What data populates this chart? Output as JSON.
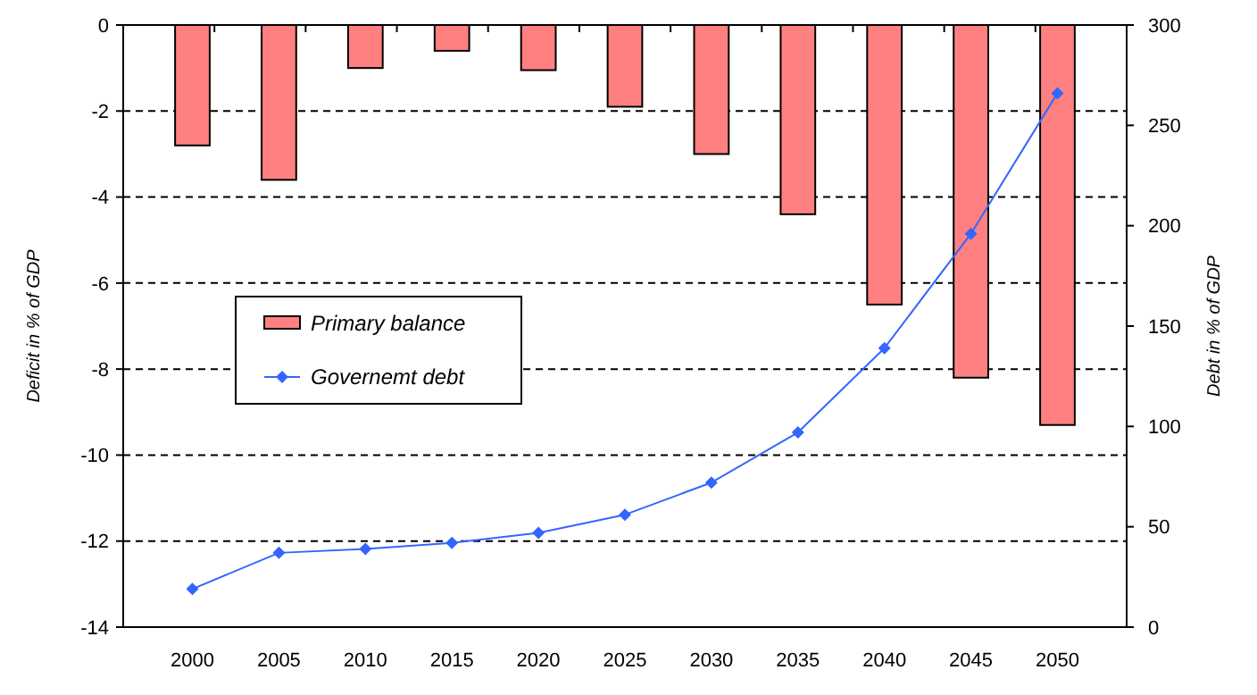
{
  "chart_data": {
    "type": "bar",
    "categories": [
      "2000",
      "2005",
      "2010",
      "2015",
      "2020",
      "2025",
      "2030",
      "2035",
      "2040",
      "2045",
      "2050"
    ],
    "ylabel": "Deficit in % of GDP",
    "y2label": "Debt in % of GDP",
    "ylim": [
      -14,
      0
    ],
    "yticks": [
      -14,
      -12,
      -10,
      -8,
      -6,
      -4,
      -2,
      0
    ],
    "y2lim": [
      0,
      300
    ],
    "y2ticks": [
      0,
      50,
      100,
      150,
      200,
      250,
      300
    ],
    "grid": "y",
    "legend": "left",
    "series": [
      {
        "name": "Primary balance",
        "color": "#ff8080",
        "values": [
          -2.8,
          -3.6,
          -1.0,
          -0.6,
          -1.05,
          -1.9,
          -3.0,
          -4.4,
          -6.5,
          -8.2,
          -9.3
        ]
      },
      {
        "name": "Governemt debt",
        "type": "line",
        "axis": "y2",
        "color": "#3366ff",
        "marker": "diamond",
        "values": [
          19,
          37,
          39,
          42,
          47,
          56,
          72,
          97,
          139,
          196,
          266
        ]
      }
    ]
  }
}
